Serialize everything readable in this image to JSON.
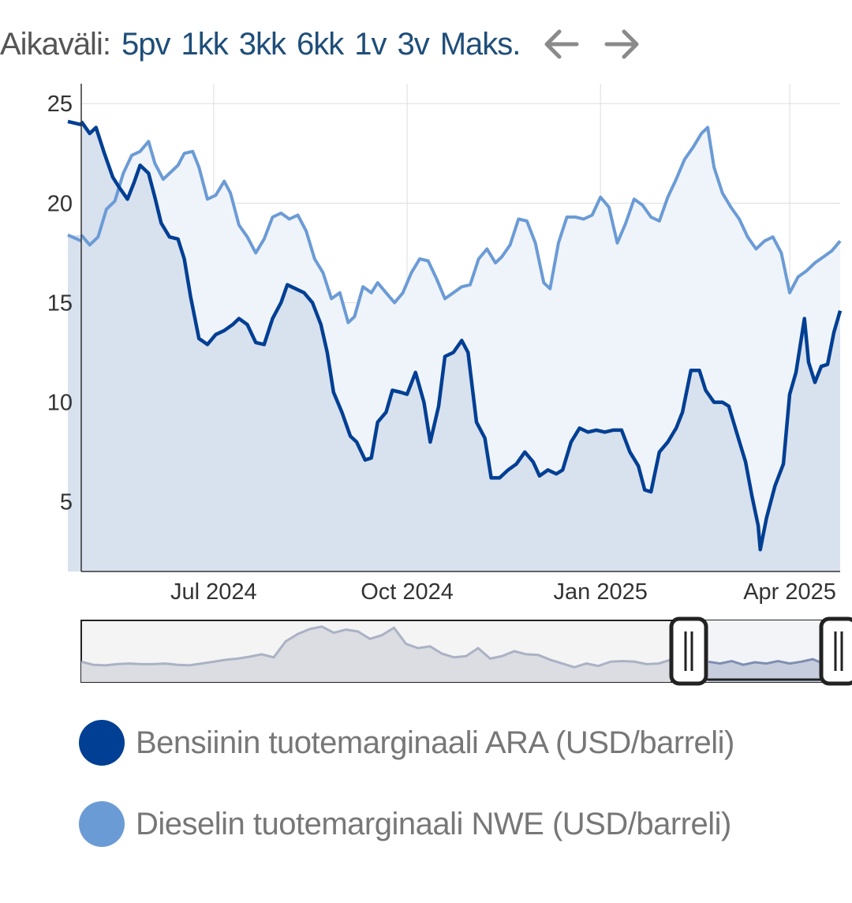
{
  "range_selector": {
    "label": "Aikaväli:",
    "options": [
      "5pv",
      "1kk",
      "3kk",
      "6kk",
      "1v",
      "3v",
      "Maks."
    ],
    "prev_icon": "arrow-left-icon",
    "next_icon": "arrow-right-icon"
  },
  "colors": {
    "gasoline": "#003f93",
    "diesel": "#6b9bd5",
    "gasoline_fill": "#d8e1ee",
    "diesel_fill": "#eff4fb",
    "grid": "#dddddd",
    "navigator_handle": "#333333"
  },
  "chart_data": {
    "type": "line",
    "x_start": "2024-04-29",
    "x_end": "2025-04-25",
    "xlim": [
      "2024-04-29",
      "2025-04-25"
    ],
    "ylim": [
      1.5,
      26
    ],
    "y_ticks": [
      5,
      10,
      15,
      20,
      25
    ],
    "x_ticks": [
      {
        "date": "2024-07-01",
        "label": "Jul 2024"
      },
      {
        "date": "2024-10-01",
        "label": "Oct 2024"
      },
      {
        "date": "2025-01-01",
        "label": "Jan 2025"
      },
      {
        "date": "2025-04-01",
        "label": "Apr 2025"
      }
    ],
    "grid": true,
    "legend_position": "bottom",
    "series": [
      {
        "name": "Bensiinin tuotemarginaali ARA (USD/barreli)",
        "color": "#003f93",
        "points": [
          [
            "2024-04-29",
            24.1
          ],
          [
            "2024-05-03",
            23.5
          ],
          [
            "2024-05-06",
            23.8
          ],
          [
            "2024-05-10",
            22.5
          ],
          [
            "2024-05-14",
            21.3
          ],
          [
            "2024-05-17",
            20.8
          ],
          [
            "2024-05-21",
            20.2
          ],
          [
            "2024-05-24",
            21.0
          ],
          [
            "2024-05-27",
            21.9
          ],
          [
            "2024-05-31",
            21.5
          ],
          [
            "2024-06-03",
            20.3
          ],
          [
            "2024-06-06",
            19.0
          ],
          [
            "2024-06-10",
            18.3
          ],
          [
            "2024-06-14",
            18.2
          ],
          [
            "2024-06-17",
            17.2
          ],
          [
            "2024-06-20",
            15.3
          ],
          [
            "2024-06-24",
            13.2
          ],
          [
            "2024-06-28",
            12.9
          ],
          [
            "2024-07-02",
            13.4
          ],
          [
            "2024-07-06",
            13.6
          ],
          [
            "2024-07-10",
            13.9
          ],
          [
            "2024-07-13",
            14.2
          ],
          [
            "2024-07-17",
            13.9
          ],
          [
            "2024-07-21",
            13.0
          ],
          [
            "2024-07-25",
            12.9
          ],
          [
            "2024-07-29",
            14.2
          ],
          [
            "2024-08-02",
            15.0
          ],
          [
            "2024-08-05",
            15.9
          ],
          [
            "2024-08-09",
            15.7
          ],
          [
            "2024-08-13",
            15.5
          ],
          [
            "2024-08-17",
            15.0
          ],
          [
            "2024-08-21",
            13.9
          ],
          [
            "2024-08-24",
            12.5
          ],
          [
            "2024-08-27",
            10.5
          ],
          [
            "2024-08-31",
            9.5
          ],
          [
            "2024-09-04",
            8.3
          ],
          [
            "2024-09-07",
            8.0
          ],
          [
            "2024-09-11",
            7.1
          ],
          [
            "2024-09-14",
            7.2
          ],
          [
            "2024-09-17",
            9.0
          ],
          [
            "2024-09-21",
            9.5
          ],
          [
            "2024-09-24",
            10.6
          ],
          [
            "2024-09-28",
            10.5
          ],
          [
            "2024-10-01",
            10.4
          ],
          [
            "2024-10-05",
            11.5
          ],
          [
            "2024-10-09",
            10.0
          ],
          [
            "2024-10-12",
            8.0
          ],
          [
            "2024-10-16",
            9.8
          ],
          [
            "2024-10-19",
            12.3
          ],
          [
            "2024-10-23",
            12.5
          ],
          [
            "2024-10-27",
            13.1
          ],
          [
            "2024-10-30",
            12.5
          ],
          [
            "2024-11-03",
            9.0
          ],
          [
            "2024-11-07",
            8.2
          ],
          [
            "2024-11-10",
            6.2
          ],
          [
            "2024-11-14",
            6.2
          ],
          [
            "2024-11-18",
            6.6
          ],
          [
            "2024-11-22",
            6.9
          ],
          [
            "2024-11-26",
            7.5
          ],
          [
            "2024-11-30",
            7.0
          ],
          [
            "2024-12-03",
            6.3
          ],
          [
            "2024-12-07",
            6.6
          ],
          [
            "2024-12-11",
            6.4
          ],
          [
            "2024-12-14",
            6.6
          ],
          [
            "2024-12-18",
            8.0
          ],
          [
            "2024-12-22",
            8.7
          ],
          [
            "2024-12-26",
            8.5
          ],
          [
            "2024-12-30",
            8.6
          ],
          [
            "2025-01-03",
            8.5
          ],
          [
            "2025-01-07",
            8.6
          ],
          [
            "2025-01-11",
            8.6
          ],
          [
            "2025-01-15",
            7.5
          ],
          [
            "2025-01-19",
            6.8
          ],
          [
            "2025-01-22",
            5.6
          ],
          [
            "2025-01-25",
            5.5
          ],
          [
            "2025-01-29",
            7.5
          ],
          [
            "2025-02-02",
            8.0
          ],
          [
            "2025-02-06",
            8.7
          ],
          [
            "2025-02-09",
            9.5
          ],
          [
            "2025-02-13",
            11.6
          ],
          [
            "2025-02-17",
            11.6
          ],
          [
            "2025-02-20",
            10.6
          ],
          [
            "2025-02-24",
            10.0
          ],
          [
            "2025-02-28",
            10.0
          ],
          [
            "2025-03-03",
            9.8
          ],
          [
            "2025-03-07",
            8.4
          ],
          [
            "2025-03-11",
            7.0
          ],
          [
            "2025-03-14",
            5.3
          ],
          [
            "2025-03-17",
            3.8
          ],
          [
            "2025-03-18",
            2.6
          ],
          [
            "2025-03-21",
            4.2
          ],
          [
            "2025-03-25",
            5.8
          ],
          [
            "2025-03-29",
            6.9
          ],
          [
            "2025-04-01",
            10.4
          ],
          [
            "2025-04-04",
            11.5
          ],
          [
            "2025-04-08",
            14.2
          ],
          [
            "2025-04-10",
            12.0
          ],
          [
            "2025-04-13",
            11.0
          ],
          [
            "2025-04-16",
            11.8
          ],
          [
            "2025-04-19",
            11.9
          ],
          [
            "2025-04-22",
            13.5
          ],
          [
            "2025-04-25",
            14.6
          ]
        ]
      },
      {
        "name": "Dieselin tuotemarginaali NWE (USD/barreli)",
        "color": "#6b9bd5",
        "points": [
          [
            "2024-04-29",
            18.4
          ],
          [
            "2024-05-03",
            17.9
          ],
          [
            "2024-05-07",
            18.3
          ],
          [
            "2024-05-11",
            19.7
          ],
          [
            "2024-05-15",
            20.1
          ],
          [
            "2024-05-19",
            21.5
          ],
          [
            "2024-05-23",
            22.4
          ],
          [
            "2024-05-27",
            22.6
          ],
          [
            "2024-05-31",
            23.1
          ],
          [
            "2024-06-03",
            22.0
          ],
          [
            "2024-06-07",
            21.2
          ],
          [
            "2024-06-10",
            21.5
          ],
          [
            "2024-06-14",
            21.9
          ],
          [
            "2024-06-17",
            22.5
          ],
          [
            "2024-06-21",
            22.6
          ],
          [
            "2024-06-24",
            21.8
          ],
          [
            "2024-06-28",
            20.2
          ],
          [
            "2024-07-02",
            20.4
          ],
          [
            "2024-07-06",
            21.1
          ],
          [
            "2024-07-09",
            20.5
          ],
          [
            "2024-07-13",
            18.9
          ],
          [
            "2024-07-17",
            18.3
          ],
          [
            "2024-07-21",
            17.5
          ],
          [
            "2024-07-25",
            18.2
          ],
          [
            "2024-07-29",
            19.3
          ],
          [
            "2024-08-02",
            19.5
          ],
          [
            "2024-08-06",
            19.2
          ],
          [
            "2024-08-10",
            19.4
          ],
          [
            "2024-08-14",
            18.6
          ],
          [
            "2024-08-18",
            17.2
          ],
          [
            "2024-08-22",
            16.5
          ],
          [
            "2024-08-26",
            15.2
          ],
          [
            "2024-08-30",
            15.5
          ],
          [
            "2024-09-03",
            14.0
          ],
          [
            "2024-09-06",
            14.3
          ],
          [
            "2024-09-10",
            15.8
          ],
          [
            "2024-09-14",
            15.5
          ],
          [
            "2024-09-17",
            16.0
          ],
          [
            "2024-09-21",
            15.5
          ],
          [
            "2024-09-25",
            15.0
          ],
          [
            "2024-09-29",
            15.5
          ],
          [
            "2024-10-03",
            16.5
          ],
          [
            "2024-10-07",
            17.2
          ],
          [
            "2024-10-11",
            17.1
          ],
          [
            "2024-10-15",
            16.2
          ],
          [
            "2024-10-19",
            15.2
          ],
          [
            "2024-10-23",
            15.5
          ],
          [
            "2024-10-27",
            15.8
          ],
          [
            "2024-10-31",
            15.9
          ],
          [
            "2024-11-04",
            17.2
          ],
          [
            "2024-11-08",
            17.7
          ],
          [
            "2024-11-12",
            17.0
          ],
          [
            "2024-11-15",
            17.3
          ],
          [
            "2024-11-19",
            17.9
          ],
          [
            "2024-11-23",
            19.2
          ],
          [
            "2024-11-27",
            19.1
          ],
          [
            "2024-12-01",
            18.0
          ],
          [
            "2024-12-05",
            16.0
          ],
          [
            "2024-12-08",
            15.7
          ],
          [
            "2024-12-12",
            18.0
          ],
          [
            "2024-12-16",
            19.3
          ],
          [
            "2024-12-20",
            19.3
          ],
          [
            "2024-12-24",
            19.2
          ],
          [
            "2024-12-28",
            19.4
          ],
          [
            "2025-01-01",
            20.3
          ],
          [
            "2025-01-05",
            19.8
          ],
          [
            "2025-01-09",
            18.0
          ],
          [
            "2025-01-13",
            19.0
          ],
          [
            "2025-01-17",
            20.2
          ],
          [
            "2025-01-21",
            19.9
          ],
          [
            "2025-01-25",
            19.3
          ],
          [
            "2025-01-29",
            19.1
          ],
          [
            "2025-02-02",
            20.3
          ],
          [
            "2025-02-06",
            21.2
          ],
          [
            "2025-02-10",
            22.2
          ],
          [
            "2025-02-14",
            22.8
          ],
          [
            "2025-02-18",
            23.5
          ],
          [
            "2025-02-21",
            23.8
          ],
          [
            "2025-02-24",
            21.8
          ],
          [
            "2025-02-28",
            20.5
          ],
          [
            "2025-03-04",
            19.8
          ],
          [
            "2025-03-08",
            19.2
          ],
          [
            "2025-03-12",
            18.3
          ],
          [
            "2025-03-16",
            17.7
          ],
          [
            "2025-03-20",
            18.1
          ],
          [
            "2025-03-24",
            18.3
          ],
          [
            "2025-03-28",
            17.5
          ],
          [
            "2025-04-01",
            15.5
          ],
          [
            "2025-04-05",
            16.3
          ],
          [
            "2025-04-09",
            16.6
          ],
          [
            "2025-04-13",
            17.0
          ],
          [
            "2025-04-17",
            17.3
          ],
          [
            "2025-04-21",
            17.6
          ],
          [
            "2025-04-25",
            18.1
          ]
        ]
      }
    ]
  },
  "navigator": {
    "selected_start": "2024-04-29",
    "selected_end": "2025-04-25",
    "handle_left_icon": "drag-handle-icon",
    "handle_right_icon": "drag-handle-icon",
    "overview_points": [
      0.33,
      0.28,
      0.27,
      0.29,
      0.3,
      0.29,
      0.29,
      0.3,
      0.28,
      0.27,
      0.3,
      0.33,
      0.36,
      0.38,
      0.41,
      0.45,
      0.4,
      0.66,
      0.78,
      0.86,
      0.9,
      0.8,
      0.85,
      0.82,
      0.7,
      0.76,
      0.88,
      0.62,
      0.55,
      0.58,
      0.46,
      0.4,
      0.42,
      0.55,
      0.38,
      0.42,
      0.5,
      0.45,
      0.44,
      0.36,
      0.3,
      0.24,
      0.3,
      0.26,
      0.33,
      0.34,
      0.33,
      0.29,
      0.3,
      0.36
    ],
    "selected_overview_points": [
      0.33,
      0.3,
      0.34,
      0.28,
      0.32,
      0.3,
      0.34,
      0.3,
      0.33,
      0.37,
      0.29
    ]
  },
  "legend": [
    {
      "label": "Bensiinin tuotemarginaali ARA (USD/barreli)",
      "color": "#003f93"
    },
    {
      "label": "Dieselin tuotemarginaali NWE (USD/barreli)",
      "color": "#6b9bd5"
    }
  ]
}
